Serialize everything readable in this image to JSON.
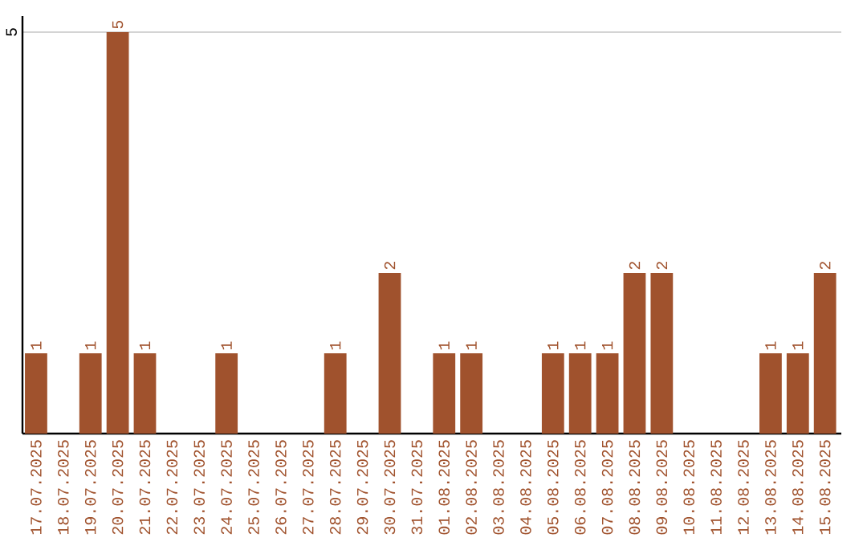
{
  "chart_data": {
    "type": "bar",
    "categories": [
      "17.07.2025",
      "18.07.2025",
      "19.07.2025",
      "20.07.2025",
      "21.07.2025",
      "22.07.2025",
      "23.07.2025",
      "24.07.2025",
      "25.07.2025",
      "26.07.2025",
      "27.07.2025",
      "28.07.2025",
      "29.07.2025",
      "30.07.2025",
      "31.07.2025",
      "01.08.2025",
      "02.08.2025",
      "03.08.2025",
      "04.08.2025",
      "05.08.2025",
      "06.08.2025",
      "07.08.2025",
      "08.08.2025",
      "09.08.2025",
      "10.08.2025",
      "11.08.2025",
      "12.08.2025",
      "13.08.2025",
      "14.08.2025",
      "15.08.2025"
    ],
    "values": [
      1,
      0,
      1,
      5,
      1,
      0,
      0,
      1,
      0,
      0,
      0,
      1,
      0,
      2,
      0,
      1,
      1,
      0,
      0,
      1,
      1,
      1,
      2,
      2,
      0,
      0,
      0,
      1,
      1,
      2
    ],
    "value_labels": [
      "1",
      null,
      "1",
      "5",
      "1",
      null,
      null,
      "1",
      null,
      null,
      null,
      "1",
      null,
      "2",
      null,
      "1",
      "1",
      null,
      null,
      "1",
      "1",
      "1",
      "2",
      "2",
      null,
      null,
      null,
      "1",
      "1",
      "2"
    ],
    "color": "#a0522d",
    "ylim": [
      0,
      5.2
    ],
    "yticks": [
      5
    ],
    "grid": "y"
  }
}
